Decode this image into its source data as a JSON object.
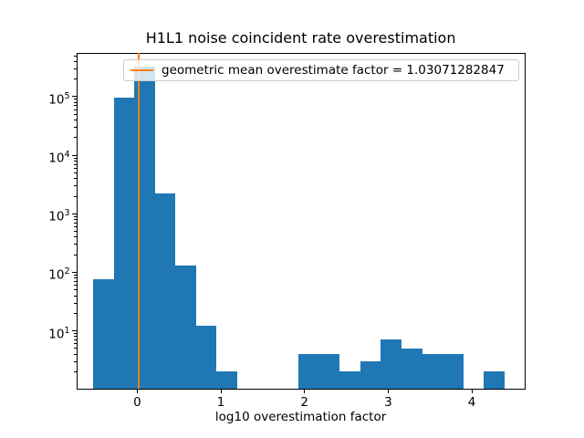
{
  "chart_data": {
    "type": "bar",
    "subtype": "histogram",
    "title": "H1L1 noise coincident rate overestimation",
    "xlabel": "log10 overestimation factor",
    "ylabel": "",
    "yscale": "log",
    "grid": false,
    "legend": {
      "label": "geometric mean overestimate factor = 1.03071282847",
      "position": "upper center"
    },
    "geometric_mean_factor": 1.03071282847,
    "bin_edges": [
      -0.525,
      -0.279,
      -0.034,
      0.212,
      0.458,
      0.703,
      0.949,
      1.195,
      1.44,
      1.686,
      1.932,
      2.177,
      2.423,
      2.669,
      2.914,
      3.16,
      3.406,
      3.651,
      3.897,
      4.142,
      4.388
    ],
    "counts": [
      75,
      95000,
      320000,
      2250,
      130,
      12,
      2,
      0,
      0,
      0,
      4,
      4,
      2,
      3,
      7,
      5,
      4,
      4,
      0,
      2
    ],
    "xlim": [
      -0.73,
      4.64
    ],
    "ylim": [
      1.0,
      564000
    ],
    "xticks": [
      0,
      1,
      2,
      3,
      4
    ],
    "ytick_exponents": [
      1,
      2,
      3,
      4,
      5
    ],
    "colors": {
      "bar": "#1f77b4",
      "mean_line": "#ff7f0e"
    }
  }
}
